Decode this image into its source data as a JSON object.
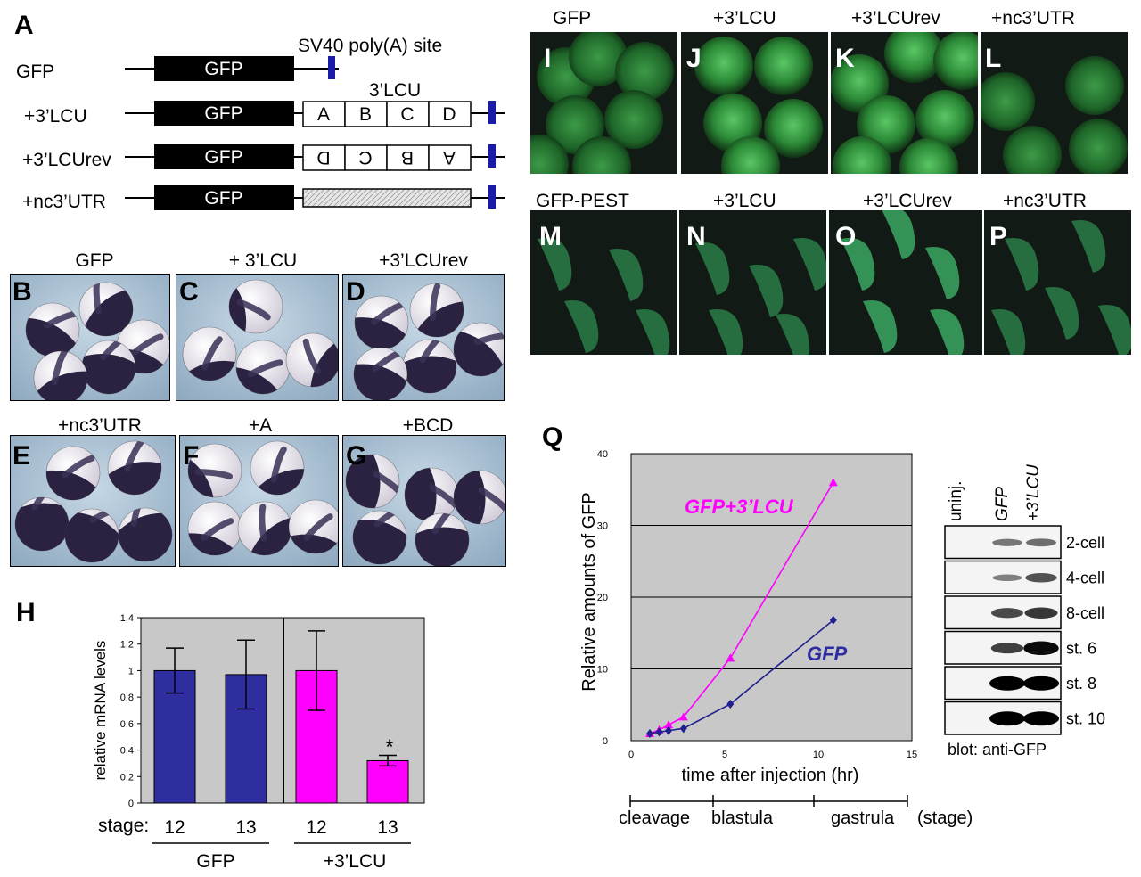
{
  "panel_letters": {
    "A": "A",
    "B": "B",
    "C": "C",
    "D": "D",
    "E": "E",
    "F": "F",
    "G": "G",
    "H": "H",
    "I": "I",
    "J": "J",
    "K": "K",
    "L": "L",
    "M": "M",
    "N": "N",
    "O": "O",
    "P": "P",
    "Q": "Q"
  },
  "panelA": {
    "rows": [
      {
        "name": "GFP",
        "box": "GFP"
      },
      {
        "name": "+3’LCU",
        "box": "GFP",
        "segments": [
          "A",
          "B",
          "C",
          "D"
        ]
      },
      {
        "name": "+3’LCUrev",
        "box": "GFP",
        "segments": [
          "D",
          "C",
          "B",
          "A"
        ]
      },
      {
        "name": "+nc3’UTR",
        "box": "GFP"
      }
    ],
    "sv40_label": "SV40 poly(A) site",
    "lcu_label": "3’LCU",
    "colors": {
      "gfp_box": "#000000",
      "polyA": "#1a1aa8",
      "utr_fill": "#d9d9d9"
    }
  },
  "embryos_top": {
    "titles": [
      "GFP",
      "+ 3’LCU",
      "+3’LCUrev"
    ]
  },
  "embryos_bottom": {
    "titles": [
      "+nc3’UTR",
      "+A",
      "+BCD"
    ]
  },
  "fluor_top": {
    "titles": [
      "GFP",
      "+3’LCU",
      "+3’LCUrev",
      "+nc3’UTR"
    ]
  },
  "fluor_bottom": {
    "titles": [
      "GFP-PEST",
      "+3’LCU",
      "+3’LCUrev",
      "+nc3’UTR"
    ]
  },
  "chart_data": [
    {
      "type": "bar",
      "panel": "H",
      "ylabel": "relative mRNA levels",
      "ylim": [
        0,
        1.4
      ],
      "yticks": [
        "0",
        "0.2",
        "0.4",
        "0.6",
        "0.8",
        "1",
        "1.2",
        "1.4"
      ],
      "stage_label": "stage:",
      "categories": [
        "12",
        "13",
        "12",
        "13"
      ],
      "groups": [
        "GFP",
        "+3’LCU"
      ],
      "values": [
        1.0,
        0.97,
        1.0,
        0.32
      ],
      "errors": [
        0.17,
        0.26,
        0.3,
        0.04
      ],
      "colors": [
        "#2e2e9e",
        "#2e2e9e",
        "#ff00ff",
        "#ff00ff"
      ],
      "annotation": "*",
      "grid": false
    },
    {
      "type": "line",
      "panel": "Q",
      "xlabel": "time after injection (hr)",
      "ylabel": "Relative amounts of GFP",
      "xlim": [
        0,
        15
      ],
      "ylim": [
        0,
        40
      ],
      "xticks": [
        "0",
        "5",
        "10",
        "15"
      ],
      "yticks": [
        "0",
        "10",
        "20",
        "30",
        "40"
      ],
      "grid": true,
      "series": [
        {
          "name": "GFP+3’LCU",
          "color": "#ff00ff",
          "marker": "triangle",
          "x": [
            1.0,
            1.5,
            2.0,
            2.8,
            5.3,
            10.8
          ],
          "y": [
            1.0,
            1.5,
            2.2,
            3.3,
            11.5,
            36.0
          ]
        },
        {
          "name": "GFP",
          "color": "#1f1f8f",
          "marker": "diamond",
          "x": [
            1.0,
            1.5,
            2.0,
            2.8,
            5.3,
            10.8
          ],
          "y": [
            1.0,
            1.2,
            1.4,
            1.7,
            5.1,
            16.8
          ]
        }
      ],
      "stage_labels": [
        "cleavage",
        "blastula",
        "gastrula",
        "(stage)"
      ]
    }
  ],
  "blot": {
    "columns": [
      "uninj.",
      "GFP",
      "+3’LCU"
    ],
    "rows": [
      "2-cell",
      "4-cell",
      "8-cell",
      "st. 6",
      "st. 8",
      "st. 10"
    ],
    "band_intensity": [
      [
        0,
        0.35,
        0.4
      ],
      [
        0,
        0.3,
        0.55
      ],
      [
        0,
        0.6,
        0.7
      ],
      [
        0,
        0.65,
        0.95
      ],
      [
        0,
        1,
        1
      ],
      [
        0,
        1,
        1
      ]
    ],
    "caption": "blot: anti-GFP"
  }
}
